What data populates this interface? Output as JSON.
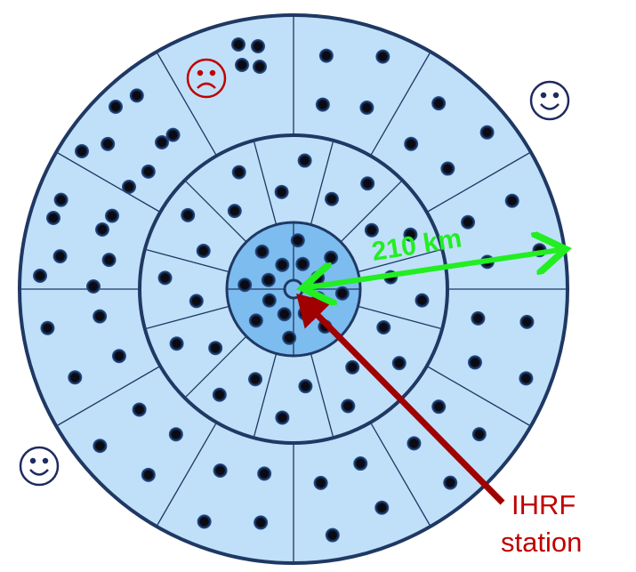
{
  "labels": {
    "distance": "210 km",
    "station_line1": "IHRF",
    "station_line2": "station"
  }
}
